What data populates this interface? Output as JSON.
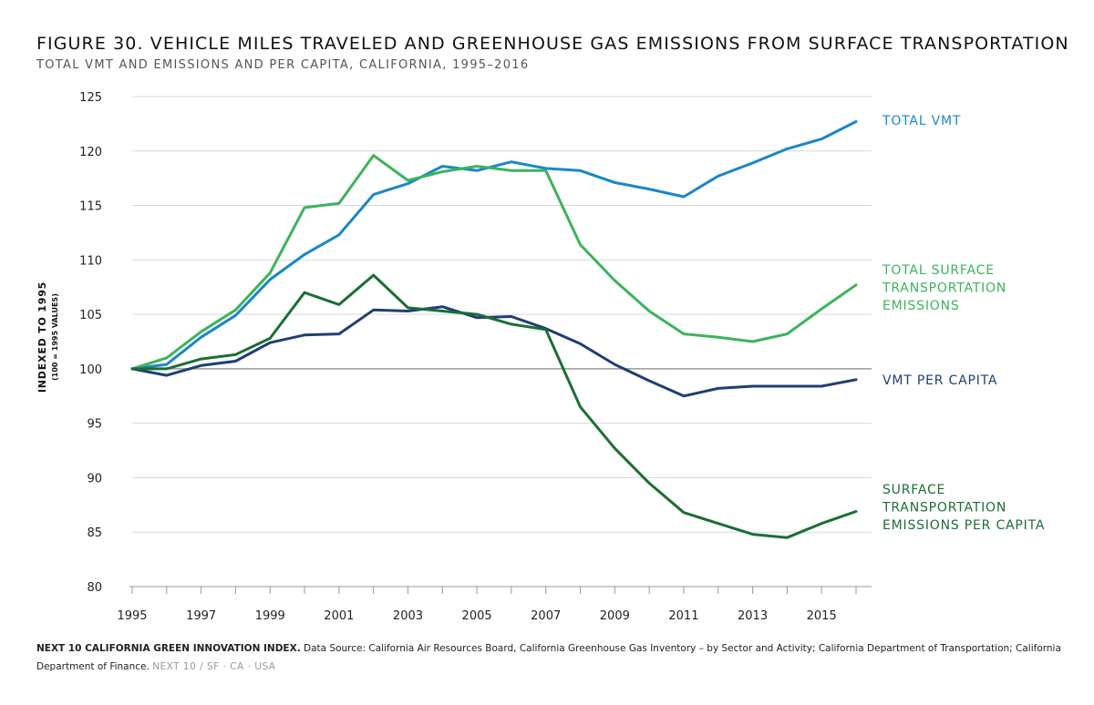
{
  "title": "FIGURE 30. VEHICLE MILES TRAVELED AND GREENHOUSE GAS EMISSIONS FROM SURFACE TRANSPORTATION",
  "subtitle": "TOTAL VMT AND EMISSIONS AND PER CAPITA, CALIFORNIA, 1995–2016",
  "footer": {
    "source_bold": "NEXT 10 CALIFORNIA GREEN INNOVATION INDEX.",
    "source_text": "Data Source: California Air Resources Board, California Greenhouse Gas Inventory – by Sector and Activity; California Department of Transportation; California Department of Finance.",
    "org": "NEXT 10 / SF · CA · USA"
  },
  "colors": {
    "total_vmt": "#1a87c9",
    "total_emissions": "#3db35c",
    "vmt_per_capita": "#1f3f73",
    "emissions_per_capita": "#1b6e35",
    "grid": "#d9d9d9",
    "baseline": "#999999"
  },
  "chart_data": {
    "type": "line",
    "title": "FIGURE 30. VEHICLE MILES TRAVELED AND GREENHOUSE GAS EMISSIONS FROM SURFACE TRANSPORTATION",
    "subtitle": "TOTAL VMT AND EMISSIONS AND PER CAPITA, CALIFORNIA, 1995–2016",
    "ylabel": "INDEXED TO 1995",
    "ylabel_sub": "(100 = 1995 VALUES)",
    "xlabel": "",
    "ylim": [
      80,
      125
    ],
    "yticks": [
      80,
      85,
      90,
      95,
      100,
      105,
      110,
      115,
      120,
      125
    ],
    "xlim": [
      1995,
      2016
    ],
    "xtick_labels": [
      "1995",
      "1997",
      "1999",
      "2001",
      "2003",
      "2005",
      "2007",
      "2009",
      "2011",
      "2013",
      "2015"
    ],
    "grid": true,
    "legend": "direct labels at right",
    "x": [
      1995,
      1996,
      1997,
      1998,
      1999,
      2000,
      2001,
      2002,
      2003,
      2004,
      2005,
      2006,
      2007,
      2008,
      2009,
      2010,
      2011,
      2012,
      2013,
      2014,
      2015,
      2016
    ],
    "series": [
      {
        "name": "TOTAL VMT",
        "key": "total_vmt",
        "label_lines": [
          "TOTAL VMT"
        ],
        "values": [
          100,
          100.4,
          102.9,
          104.9,
          108.2,
          110.5,
          112.3,
          116.0,
          117.0,
          118.6,
          118.2,
          119.0,
          118.4,
          118.2,
          117.1,
          116.5,
          115.8,
          117.7,
          118.9,
          120.2,
          121.1,
          122.7
        ]
      },
      {
        "name": "TOTAL SURFACE TRANSPORTATION EMISSIONS",
        "key": "total_emissions",
        "label_lines": [
          "TOTAL SURFACE",
          "TRANSPORTATION",
          "EMISSIONS"
        ],
        "values": [
          100,
          101.0,
          103.4,
          105.4,
          108.8,
          114.8,
          115.2,
          119.6,
          117.3,
          118.1,
          118.6,
          118.2,
          118.2,
          111.4,
          108.1,
          105.3,
          103.2,
          102.9,
          102.5,
          103.2,
          105.5,
          107.7
        ]
      },
      {
        "name": "VMT PER CAPITA",
        "key": "vmt_per_capita",
        "label_lines": [
          "VMT PER CAPITA"
        ],
        "values": [
          100,
          99.4,
          100.3,
          100.7,
          102.4,
          103.1,
          103.2,
          105.4,
          105.3,
          105.7,
          104.7,
          104.8,
          103.7,
          102.3,
          100.4,
          98.9,
          97.5,
          98.2,
          98.4,
          98.4,
          98.4,
          99.0
        ]
      },
      {
        "name": "SURFACE TRANSPORTATION EMISSIONS PER CAPITA",
        "key": "emissions_per_capita",
        "label_lines": [
          "SURFACE",
          "TRANSPORTATION",
          "EMISSIONS PER CAPITA"
        ],
        "values": [
          100,
          100.0,
          100.9,
          101.3,
          102.8,
          107.0,
          105.9,
          108.6,
          105.6,
          105.3,
          105.0,
          104.1,
          103.6,
          96.5,
          92.7,
          89.5,
          86.8,
          85.8,
          84.8,
          84.5,
          85.8,
          86.9
        ]
      }
    ]
  }
}
